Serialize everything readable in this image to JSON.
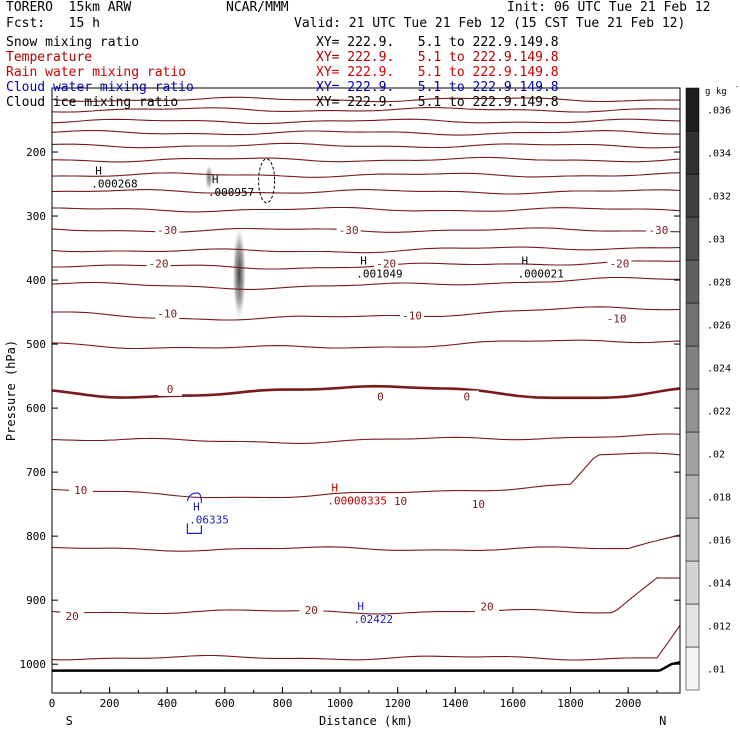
{
  "header": {
    "model": "TORERO  15km ARW",
    "org": "NCAR/MMM",
    "init": "Init: 06 UTC Tue 21 Feb 12",
    "fcst": "Fcst:   15 h",
    "valid": "Valid: 21 UTC Tue 21 Feb 12 (15 CST Tue 21 Feb 12)"
  },
  "fields": [
    {
      "name": "Snow mixing ratio",
      "xy": "XY= 222.9.   5.1 to 222.9.149.8",
      "color": "#000000"
    },
    {
      "name": "Temperature",
      "xy": "XY= 222.9.   5.1 to 222.9.149.8",
      "color": "#b00000"
    },
    {
      "name": "Rain water mixing ratio",
      "xy": "XY= 222.9.   5.1 to 222.9.149.8",
      "color": "#d00000"
    },
    {
      "name": "Cloud water mixing ratio",
      "xy": "XY= 222.9.   5.1 to 222.9.149.8",
      "color": "#0000b0"
    },
    {
      "name": "Cloud ice mixing ratio",
      "xy": "XY= 222.9.   5.1 to 222.9.149.8",
      "color": "#000000"
    }
  ],
  "chart_data": {
    "type": "contour cross-section",
    "xlabel": "Distance (km)",
    "ylabel": "Pressure (hPa)",
    "xlim": [
      0,
      2180
    ],
    "ylim": [
      1045,
      100
    ],
    "xticks": [
      0,
      200,
      400,
      600,
      800,
      1000,
      1200,
      1400,
      1600,
      1800,
      2000
    ],
    "yticks": [
      200,
      300,
      400,
      500,
      600,
      700,
      800,
      900,
      1000
    ],
    "side_labels": {
      "left": "S",
      "right": "N"
    },
    "colorbar": {
      "unit": "g kg",
      "unit_exp": "-1",
      "ticks": [
        ".01",
        ".012",
        ".014",
        ".016",
        ".018",
        ".02",
        ".022",
        ".024",
        ".026",
        ".028",
        ".03",
        ".032",
        ".034",
        ".036"
      ]
    },
    "temperature_labels": [
      {
        "x": 400,
        "p": 322,
        "t": "-30"
      },
      {
        "x": 1030,
        "p": 322,
        "t": "-30"
      },
      {
        "x": 2105,
        "p": 322,
        "t": "-30"
      },
      {
        "x": 370,
        "p": 374,
        "t": "-20"
      },
      {
        "x": 1160,
        "p": 374,
        "t": "-20"
      },
      {
        "x": 1970,
        "p": 374,
        "t": "-20"
      },
      {
        "x": 400,
        "p": 452,
        "t": "-10"
      },
      {
        "x": 1250,
        "p": 455,
        "t": "-10"
      },
      {
        "x": 1960,
        "p": 460,
        "t": "-10"
      },
      {
        "x": 410,
        "p": 570,
        "t": "0"
      },
      {
        "x": 1140,
        "p": 582,
        "t": "0"
      },
      {
        "x": 1440,
        "p": 582,
        "t": "0"
      },
      {
        "x": 100,
        "p": 728,
        "t": "10"
      },
      {
        "x": 1210,
        "p": 745,
        "t": "10"
      },
      {
        "x": 1480,
        "p": 750,
        "t": "10"
      },
      {
        "x": 70,
        "p": 925,
        "t": "20"
      },
      {
        "x": 900,
        "p": 915,
        "t": "20"
      },
      {
        "x": 1510,
        "p": 910,
        "t": "20"
      }
    ],
    "maxima": [
      {
        "x": 150,
        "p": 235,
        "value": ".000268",
        "field": "Snow mixing ratio"
      },
      {
        "x": 555,
        "p": 248,
        "value": ".000957",
        "field": "Snow mixing ratio"
      },
      {
        "x": 1070,
        "p": 376,
        "value": ".001049",
        "field": "Snow mixing ratio"
      },
      {
        "x": 1630,
        "p": 376,
        "value": ".000021",
        "field": "Snow mixing ratio"
      },
      {
        "x": 970,
        "p": 730,
        "value": ".00008335",
        "field": "Rain water mixing ratio"
      },
      {
        "x": 490,
        "p": 760,
        "value": ".06335",
        "field": "Cloud water mixing ratio"
      },
      {
        "x": 1060,
        "p": 915,
        "value": ".02422",
        "field": "Cloud water mixing ratio"
      }
    ]
  }
}
